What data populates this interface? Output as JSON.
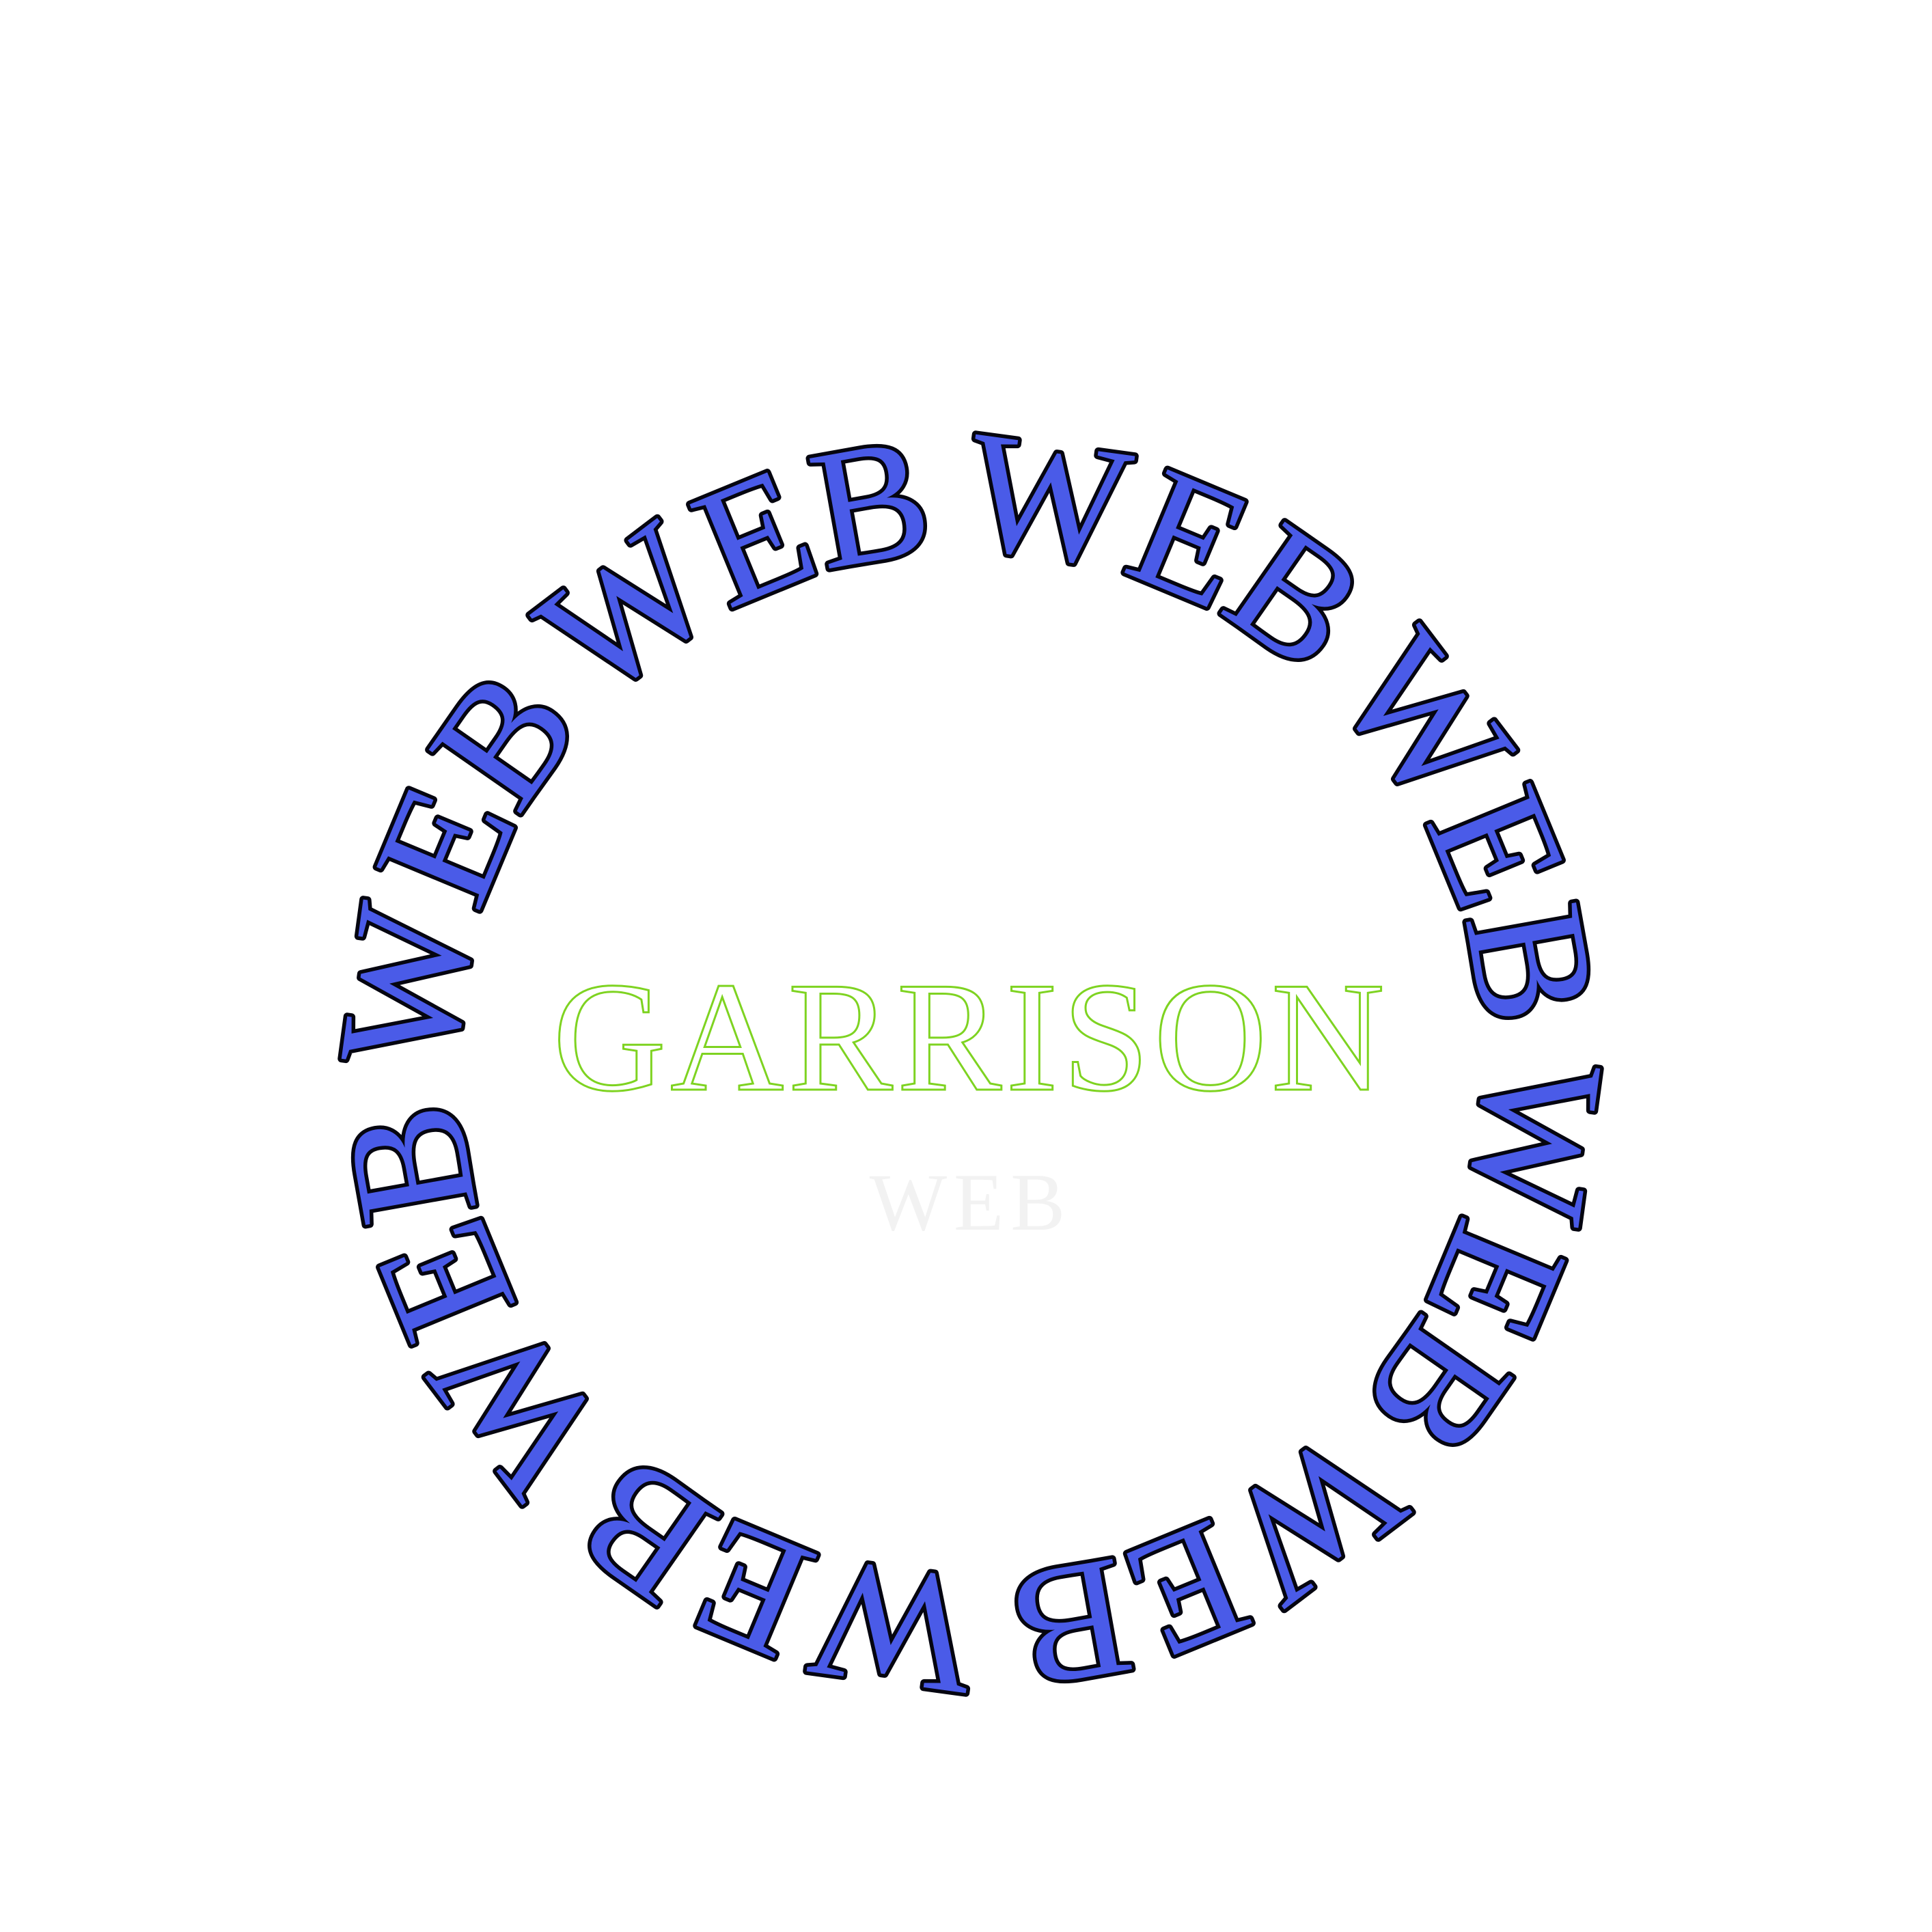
{
  "ring": {
    "words": [
      "WEB",
      "WEB",
      "WEB",
      "WEB",
      "WEB",
      "WEB",
      "WEB",
      "WEB"
    ]
  },
  "logo": {
    "title": "GARRISON",
    "subtitle": "WEB"
  }
}
